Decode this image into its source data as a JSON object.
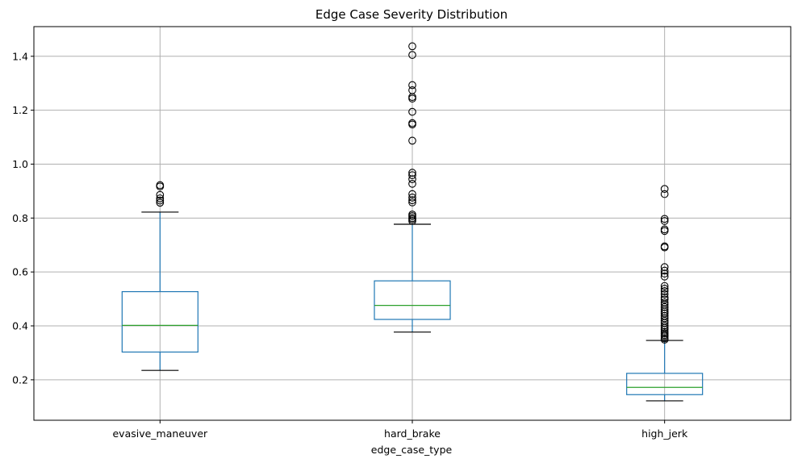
{
  "chart_data": {
    "type": "box",
    "title": "Edge Case Severity Distribution",
    "xlabel": "edge_case_type",
    "ylabel": "",
    "ylim": [
      0.05,
      1.51
    ],
    "yticks": [
      0.2,
      0.4,
      0.6,
      0.8,
      1.0,
      1.2,
      1.4
    ],
    "ytick_labels": [
      "0.2",
      "0.4",
      "0.6",
      "0.8",
      "1.0",
      "1.2",
      "1.4"
    ],
    "grid": true,
    "categories": [
      "evasive_maneuver",
      "hard_brake",
      "high_jerk"
    ],
    "boxes": [
      {
        "category": "evasive_maneuver",
        "whisker_low": 0.235,
        "q1": 0.303,
        "median": 0.402,
        "q3": 0.527,
        "whisker_high": 0.822,
        "outliers": [
          0.857,
          0.865,
          0.873,
          0.886,
          0.917,
          0.922
        ]
      },
      {
        "category": "hard_brake",
        "whisker_low": 0.377,
        "q1": 0.424,
        "median": 0.476,
        "q3": 0.567,
        "whisker_high": 0.777,
        "outliers": [
          0.789,
          0.795,
          0.8,
          0.807,
          0.813,
          0.858,
          0.866,
          0.876,
          0.889,
          0.927,
          0.944,
          0.959,
          0.968,
          1.087,
          1.147,
          1.152,
          1.194,
          1.243,
          1.249,
          1.274,
          1.293,
          1.405,
          1.437
        ]
      },
      {
        "category": "high_jerk",
        "whisker_low": 0.122,
        "q1": 0.145,
        "median": 0.172,
        "q3": 0.224,
        "whisker_high": 0.346,
        "outliers": [
          0.349,
          0.354,
          0.361,
          0.366,
          0.372,
          0.378,
          0.386,
          0.393,
          0.401,
          0.411,
          0.419,
          0.428,
          0.437,
          0.446,
          0.453,
          0.461,
          0.47,
          0.479,
          0.487,
          0.498,
          0.506,
          0.518,
          0.529,
          0.538,
          0.548,
          0.583,
          0.594,
          0.605,
          0.618,
          0.691,
          0.695,
          0.752,
          0.758,
          0.789,
          0.797,
          0.889,
          0.908
        ]
      }
    ],
    "colors": {
      "box": "#1f77b4",
      "median": "#2ca02c",
      "caps": "#000000",
      "outlier_edge": "#000000",
      "grid": "#b0b0b0",
      "axis": "#000000"
    }
  }
}
